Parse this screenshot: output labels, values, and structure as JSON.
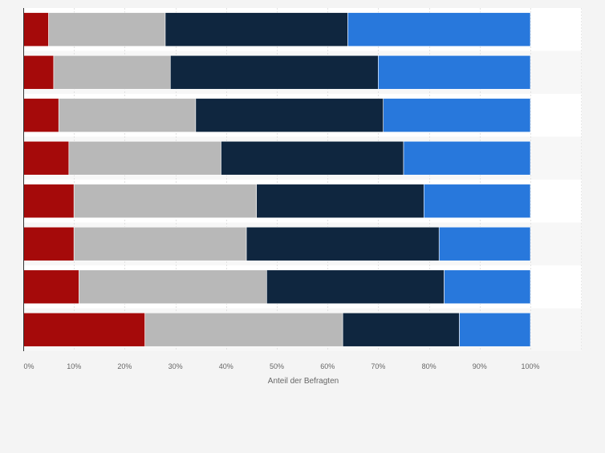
{
  "chart_data": {
    "type": "bar",
    "orientation": "horizontal",
    "stacked": true,
    "title": "",
    "xlabel": "Anteil der Befragten",
    "ylabel": "",
    "xlim": [
      0,
      100
    ],
    "x_ticks": [
      "0%",
      "10%",
      "20%",
      "30%",
      "40%",
      "50%",
      "60%",
      "70%",
      "80%",
      "90%",
      "100%"
    ],
    "grid": true,
    "legend": "none",
    "categories": [
      "",
      "",
      "",
      "",
      "",
      "",
      "",
      ""
    ],
    "series": [
      {
        "color": "#a50a0a",
        "values": [
          5,
          6,
          7,
          9,
          10,
          10,
          11,
          24
        ]
      },
      {
        "color": "#b8b8b8",
        "values": [
          23,
          23,
          27,
          30,
          36,
          34,
          37,
          39
        ]
      },
      {
        "color": "#0f263f",
        "values": [
          36,
          41,
          37,
          36,
          33,
          38,
          35,
          23
        ]
      },
      {
        "color": "#2878dc",
        "values": [
          36,
          30,
          29,
          25,
          21,
          18,
          17,
          14
        ]
      }
    ]
  }
}
